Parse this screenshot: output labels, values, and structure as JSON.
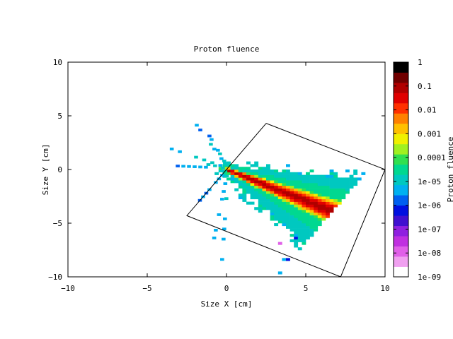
{
  "chart_data": {
    "type": "heatmap",
    "title": "Proton fluence",
    "xlabel": "Size X [cm]",
    "ylabel": "Size Y [cm]",
    "colorbar_label": "Proton fluence",
    "xlim": [
      -10,
      10
    ],
    "ylim": [
      -10,
      10
    ],
    "x_ticks": [
      -10,
      -5,
      0,
      5,
      10
    ],
    "y_ticks": [
      -10,
      -5,
      0,
      5,
      10
    ],
    "x_tick_labels": [
      "−10",
      "−5",
      "0",
      "5",
      "10"
    ],
    "y_tick_labels": [
      "−10",
      "−5",
      "0",
      "5",
      "10"
    ],
    "colorbar": {
      "scale": "log",
      "range": [
        1e-09,
        1
      ],
      "tick_values": [
        1,
        0.1,
        0.01,
        0.001,
        0.0001,
        1e-05,
        1e-06,
        1e-07,
        1e-08,
        1e-09
      ],
      "tick_labels": [
        "1",
        "0.1",
        "0.01",
        "0.001",
        "0.0001",
        "1e-05",
        "1e-06",
        "1e-07",
        "1e-08",
        "1e-09"
      ],
      "colors": [
        "#ffffff",
        "#f0a0f0",
        "#e060e8",
        "#c030e0",
        "#9020e0",
        "#4010d0",
        "#0010e0",
        "#0060f0",
        "#00b0f0",
        "#00c8c0",
        "#00d890",
        "#30e050",
        "#a0f020",
        "#f0f000",
        "#ffc000",
        "#ff8000",
        "#ff3000",
        "#e00000",
        "#b00000",
        "#700000",
        "#000000"
      ]
    },
    "geometry_outline": [
      [
        2.5,
        4.3
      ],
      [
        10,
        0
      ],
      [
        7.2,
        -10
      ],
      [
        -2.5,
        -4.3
      ],
      [
        2.5,
        4.3
      ]
    ],
    "beam": {
      "start": [
        0,
        0
      ],
      "end": [
        6.4,
        -3.7
      ],
      "peak_value": 0.1
    },
    "grid": false,
    "colorbar_position": "right"
  }
}
